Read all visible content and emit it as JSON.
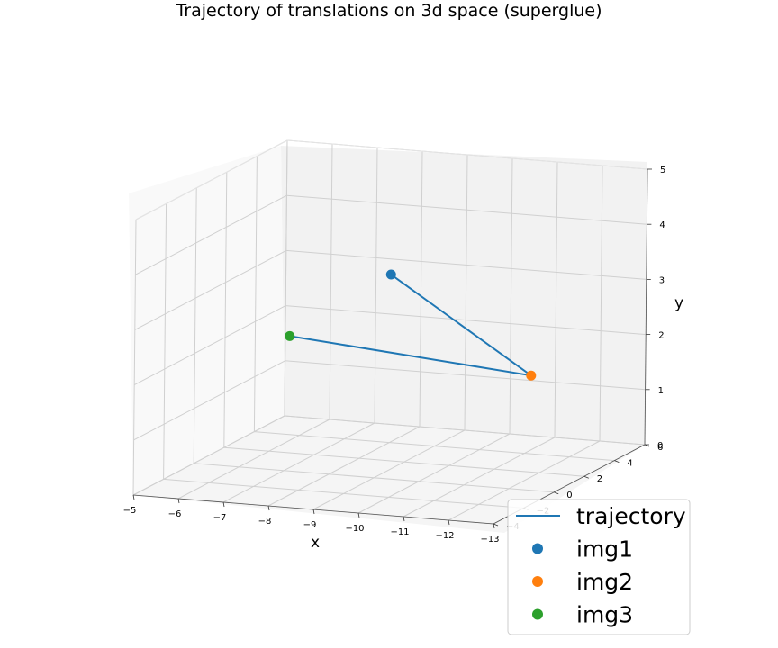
{
  "chart_data": {
    "type": "scatter",
    "title": "Trajectory of translations on 3d space (superglue)",
    "xlabel": "x",
    "ylabel": "y",
    "zlabel": "",
    "xlim": [
      -5,
      -13
    ],
    "ylim": [
      0,
      5
    ],
    "zlim": [
      -4,
      6
    ],
    "x_ticks": [
      "−5",
      "−6",
      "−7",
      "−8",
      "−9",
      "−10",
      "−11",
      "−12",
      "−13"
    ],
    "y_ticks": [
      "0",
      "1",
      "2",
      "3",
      "4",
      "5"
    ],
    "z_ticks": [
      "−4",
      "−2",
      "0",
      "2",
      "4",
      "6"
    ],
    "grid": true,
    "legend_position": "bottom-right",
    "series": [
      {
        "name": "trajectory",
        "kind": "line",
        "color": "#1f77b4",
        "points": [
          {
            "x": -7.5,
            "y": 2.8,
            "z": 5.5
          },
          {
            "x": -12.3,
            "y": 2.0,
            "z": 0.5
          },
          {
            "x": -6.6,
            "y": 2.2,
            "z": 1.5
          }
        ]
      },
      {
        "name": "img1",
        "kind": "point",
        "color": "#1f77b4",
        "point": {
          "x": -7.5,
          "y": 2.8,
          "z": 5.5
        }
      },
      {
        "name": "img2",
        "kind": "point",
        "color": "#ff7f0e",
        "point": {
          "x": -12.3,
          "y": 2.0,
          "z": 0.5
        }
      },
      {
        "name": "img3",
        "kind": "point",
        "color": "#2ca02c",
        "point": {
          "x": -6.6,
          "y": 2.2,
          "z": 1.5
        }
      }
    ]
  }
}
